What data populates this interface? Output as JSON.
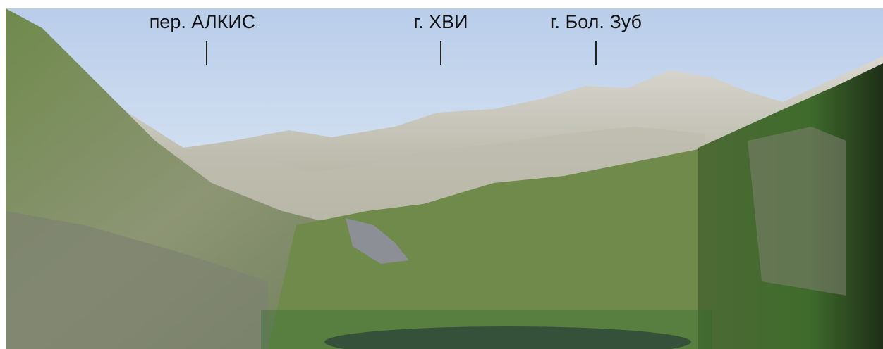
{
  "labels": [
    {
      "text": "пер. АЛКИС"
    },
    {
      "text": "г. ХВИ"
    },
    {
      "text": "г. Бол. Зуб"
    }
  ]
}
